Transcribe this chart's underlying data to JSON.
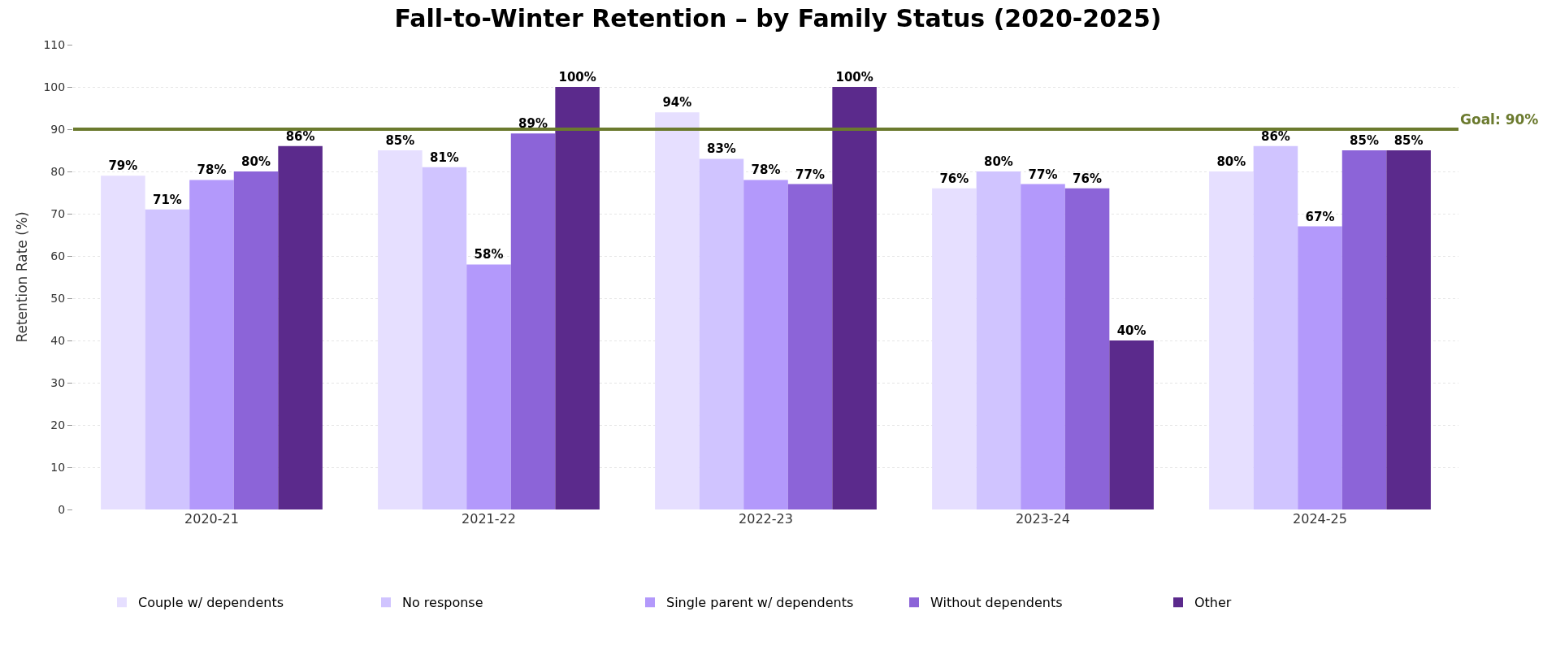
{
  "chart_data": {
    "type": "bar",
    "title": "Fall-to-Winter Retention – by Family Status (2020-2025)",
    "ylabel": "Retention Rate (%)",
    "categories": [
      "2020-21",
      "2021-22",
      "2022-23",
      "2023-24",
      "2024-25"
    ],
    "series": [
      {
        "name": "Couple w/ dependents",
        "color": "#e6dfff",
        "values": [
          79,
          85,
          94,
          76,
          80
        ],
        "value_labels": [
          "79%",
          "85%",
          "94%",
          "76%",
          "80%"
        ]
      },
      {
        "name": "No response",
        "color": "#d0c4ff",
        "values": [
          71,
          81,
          83,
          80,
          86
        ],
        "value_labels": [
          "71%",
          "81%",
          "83%",
          "80%",
          "86%"
        ]
      },
      {
        "name": "Single parent w/ dependents",
        "color": "#b399fb",
        "values": [
          78,
          58,
          78,
          77,
          67
        ],
        "value_labels": [
          "78%",
          "58%",
          "78%",
          "77%",
          "67%"
        ]
      },
      {
        "name": "Without dependents",
        "color": "#8c64d8",
        "values": [
          80,
          89,
          77,
          76,
          85
        ],
        "value_labels": [
          "80%",
          "89%",
          "77%",
          "76%",
          "85%"
        ]
      },
      {
        "name": "Other",
        "color": "#5b2a8c",
        "values": [
          86,
          100,
          100,
          40,
          85
        ],
        "value_labels": [
          "86%",
          "100%",
          "100%",
          "40%",
          "85%"
        ]
      }
    ],
    "ylim": [
      0,
      110
    ],
    "yticks": [
      0,
      10,
      20,
      30,
      40,
      50,
      60,
      70,
      80,
      90,
      100,
      110
    ],
    "grid": "y",
    "legend": "bottom",
    "ref_lines": [
      {
        "axis": "y",
        "value": 90,
        "label": "Goal: 90%",
        "color": "#6b7a2e"
      }
    ]
  }
}
